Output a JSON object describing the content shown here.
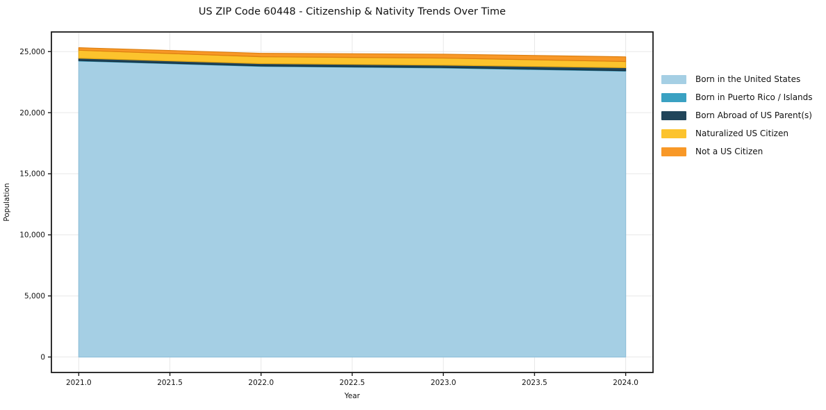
{
  "figure": {
    "title": "US ZIP Code 60448 - Citizenship & Nativity Trends Over Time",
    "xlabel": "Year",
    "ylabel": "Population"
  },
  "chart_data": {
    "type": "area",
    "stacked": true,
    "title": "US ZIP Code 60448 - Citizenship & Nativity Trends Over Time",
    "xlabel": "Year",
    "ylabel": "Population",
    "x": [
      2021,
      2022,
      2023,
      2024
    ],
    "series": [
      {
        "name": "Born in the United States",
        "color": "#a5cfe4",
        "edge_color": "#8fc0da",
        "values": [
          24230,
          23790,
          23660,
          23400
        ]
      },
      {
        "name": "Born in Puerto Rico / Islands",
        "color": "#3aa1c2",
        "edge_color": "#2f8cab",
        "values": [
          40,
          40,
          40,
          40
        ]
      },
      {
        "name": "Born Abroad of US Parent(s)",
        "color": "#21455a",
        "edge_color": "#16303f",
        "values": [
          190,
          190,
          190,
          240
        ]
      },
      {
        "name": "Naturalized US Citizen",
        "color": "#fcc32d",
        "edge_color": "#e3a714",
        "values": [
          650,
          560,
          580,
          510
        ]
      },
      {
        "name": "Not a US Citizen",
        "color": "#f89827",
        "edge_color": "#dd7f10",
        "values": [
          210,
          280,
          320,
          380
        ]
      }
    ],
    "xlim": [
      2020.85,
      2024.15
    ],
    "ylim": [
      -1267,
      26607
    ],
    "xticks": [
      {
        "value": 2021.0,
        "label": "2021.0"
      },
      {
        "value": 2021.5,
        "label": "2021.5"
      },
      {
        "value": 2022.0,
        "label": "2022.0"
      },
      {
        "value": 2022.5,
        "label": "2022.5"
      },
      {
        "value": 2023.0,
        "label": "2023.0"
      },
      {
        "value": 2023.5,
        "label": "2023.5"
      },
      {
        "value": 2024.0,
        "label": "2024.0"
      }
    ],
    "yticks": [
      {
        "value": 0,
        "label": "0"
      },
      {
        "value": 5000,
        "label": "5,000"
      },
      {
        "value": 10000,
        "label": "10,000"
      },
      {
        "value": 15000,
        "label": "15,000"
      },
      {
        "value": 20000,
        "label": "20,000"
      },
      {
        "value": 25000,
        "label": "25,000"
      }
    ],
    "grid": true,
    "grid_color": "#e7e7e7",
    "spine_color": "#1a1a1a",
    "legend_position": "right-outside"
  }
}
